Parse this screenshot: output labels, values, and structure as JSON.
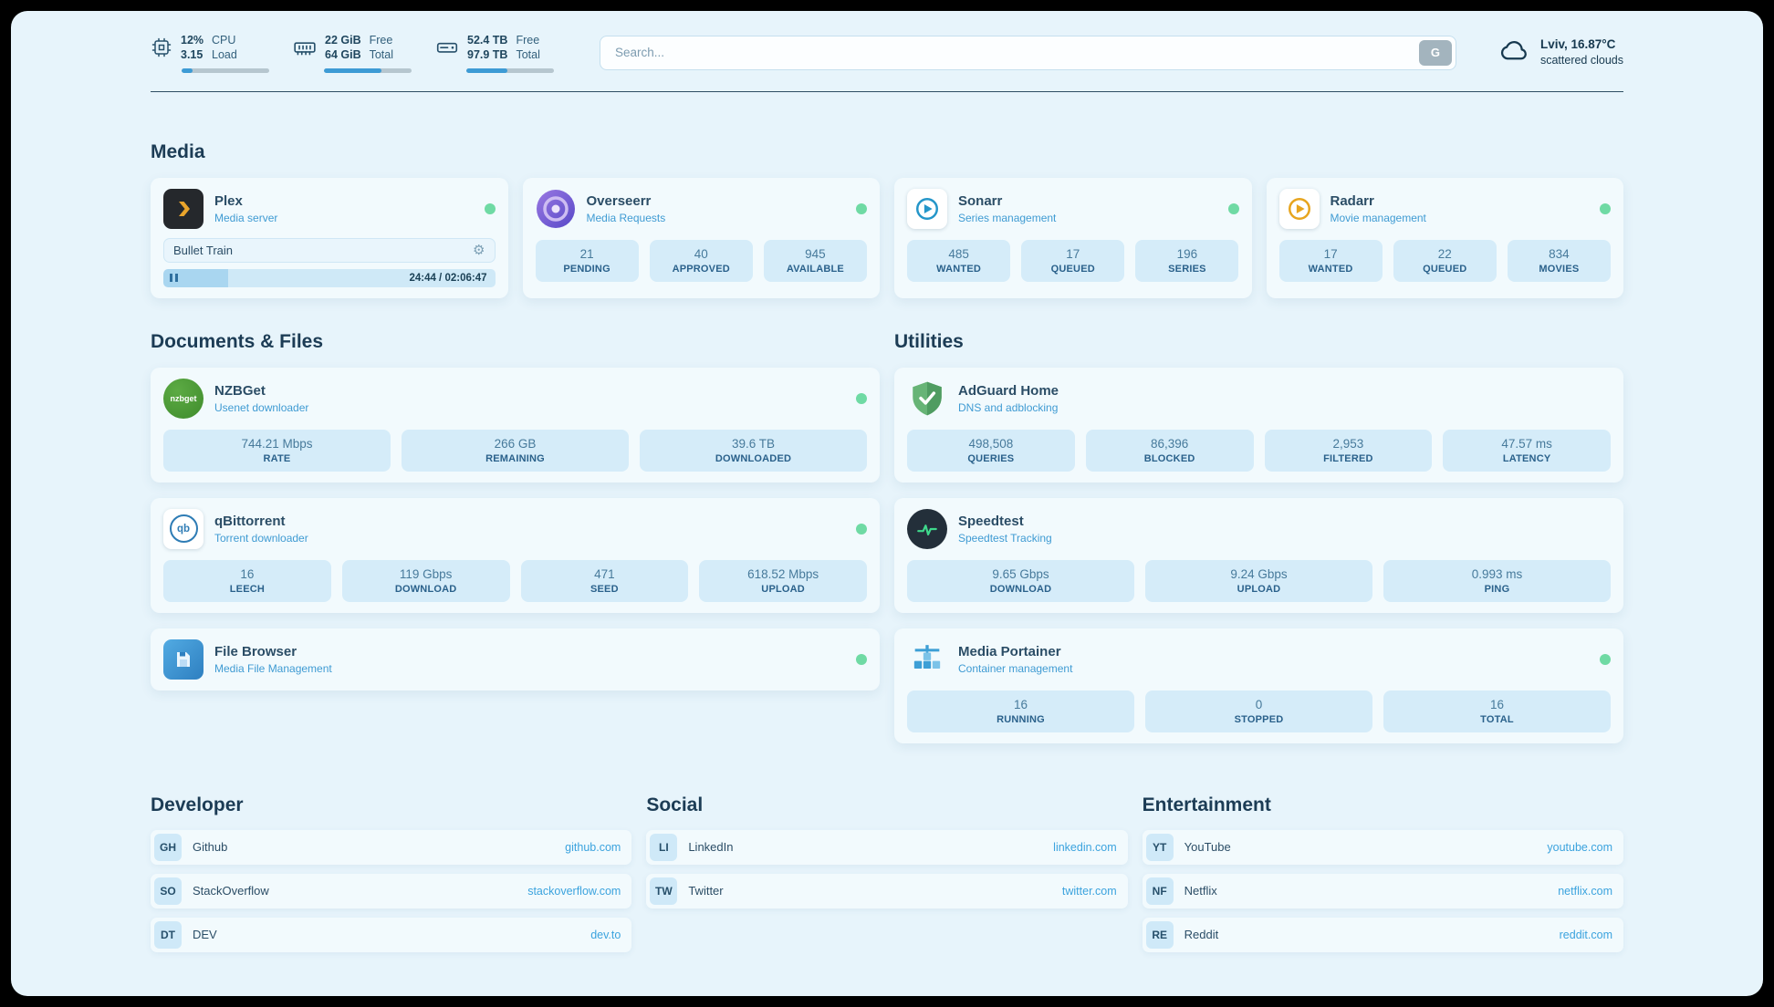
{
  "topbar": {
    "cpu": {
      "values": [
        "12%",
        "3.15"
      ],
      "labels": [
        "CPU",
        "Load"
      ],
      "percent": 12
    },
    "memory": {
      "values": [
        "22 GiB",
        "64 GiB"
      ],
      "labels": [
        "Free",
        "Total"
      ],
      "percent": 66
    },
    "disk": {
      "values": [
        "52.4 TB",
        "97.9 TB"
      ],
      "labels": [
        "Free",
        "Total"
      ],
      "percent": 47
    },
    "search": {
      "placeholder": "Search...",
      "provider_label": "G"
    },
    "weather": {
      "location": "Lviv, 16.87°C",
      "condition": "scattered clouds"
    }
  },
  "sections": {
    "media": {
      "heading": "Media",
      "plex": {
        "title": "Plex",
        "subtitle": "Media server",
        "now_playing": "Bullet Train",
        "time": "24:44 / 02:06:47",
        "progress_percent": 19.5
      },
      "overseerr": {
        "title": "Overseerr",
        "subtitle": "Media Requests",
        "stats": [
          {
            "value": "21",
            "label": "PENDING"
          },
          {
            "value": "40",
            "label": "APPROVED"
          },
          {
            "value": "945",
            "label": "AVAILABLE"
          }
        ]
      },
      "sonarr": {
        "title": "Sonarr",
        "subtitle": "Series management",
        "stats": [
          {
            "value": "485",
            "label": "WANTED"
          },
          {
            "value": "17",
            "label": "QUEUED"
          },
          {
            "value": "196",
            "label": "SERIES"
          }
        ]
      },
      "radarr": {
        "title": "Radarr",
        "subtitle": "Movie management",
        "stats": [
          {
            "value": "17",
            "label": "WANTED"
          },
          {
            "value": "22",
            "label": "QUEUED"
          },
          {
            "value": "834",
            "label": "MOVIES"
          }
        ]
      }
    },
    "documents": {
      "heading": "Documents & Files",
      "nzbget": {
        "title": "NZBGet",
        "subtitle": "Usenet downloader",
        "icon_text": "nzbget",
        "stats": [
          {
            "value": "744.21 Mbps",
            "label": "RATE"
          },
          {
            "value": "266 GB",
            "label": "REMAINING"
          },
          {
            "value": "39.6 TB",
            "label": "DOWNLOADED"
          }
        ]
      },
      "qbittorrent": {
        "title": "qBittorrent",
        "subtitle": "Torrent downloader",
        "icon_text": "qb",
        "stats": [
          {
            "value": "16",
            "label": "LEECH"
          },
          {
            "value": "119 Gbps",
            "label": "DOWNLOAD"
          },
          {
            "value": "471",
            "label": "SEED"
          },
          {
            "value": "618.52 Mbps",
            "label": "UPLOAD"
          }
        ]
      },
      "filebrowser": {
        "title": "File Browser",
        "subtitle": "Media File Management"
      }
    },
    "utilities": {
      "heading": "Utilities",
      "adguard": {
        "title": "AdGuard Home",
        "subtitle": "DNS and adblocking",
        "stats": [
          {
            "value": "498,508",
            "label": "QUERIES"
          },
          {
            "value": "86,396",
            "label": "BLOCKED"
          },
          {
            "value": "2,953",
            "label": "FILTERED"
          },
          {
            "value": "47.57 ms",
            "label": "LATENCY"
          }
        ]
      },
      "speedtest": {
        "title": "Speedtest",
        "subtitle": "Speedtest Tracking",
        "stats": [
          {
            "value": "9.65 Gbps",
            "label": "DOWNLOAD"
          },
          {
            "value": "9.24 Gbps",
            "label": "UPLOAD"
          },
          {
            "value": "0.993 ms",
            "label": "PING"
          }
        ]
      },
      "portainer": {
        "title": "Media Portainer",
        "subtitle": "Container management",
        "stats": [
          {
            "value": "16",
            "label": "RUNNING"
          },
          {
            "value": "0",
            "label": "STOPPED"
          },
          {
            "value": "16",
            "label": "TOTAL"
          }
        ]
      }
    }
  },
  "bookmarks": {
    "developer": {
      "heading": "Developer",
      "items": [
        {
          "abbr": "GH",
          "name": "Github",
          "url": "github.com"
        },
        {
          "abbr": "SO",
          "name": "StackOverflow",
          "url": "stackoverflow.com"
        },
        {
          "abbr": "DT",
          "name": "DEV",
          "url": "dev.to"
        }
      ]
    },
    "social": {
      "heading": "Social",
      "items": [
        {
          "abbr": "LI",
          "name": "LinkedIn",
          "url": "linkedin.com"
        },
        {
          "abbr": "TW",
          "name": "Twitter",
          "url": "twitter.com"
        }
      ]
    },
    "entertainment": {
      "heading": "Entertainment",
      "items": [
        {
          "abbr": "YT",
          "name": "YouTube",
          "url": "youtube.com"
        },
        {
          "abbr": "NF",
          "name": "Netflix",
          "url": "netflix.com"
        },
        {
          "abbr": "RE",
          "name": "Reddit",
          "url": "reddit.com"
        }
      ]
    }
  },
  "colors": {
    "accent": "#3d9bd5",
    "status_online": "#6fdaa4",
    "page_background": "#e7f4fb",
    "stat_box": "#d5ecf9"
  }
}
